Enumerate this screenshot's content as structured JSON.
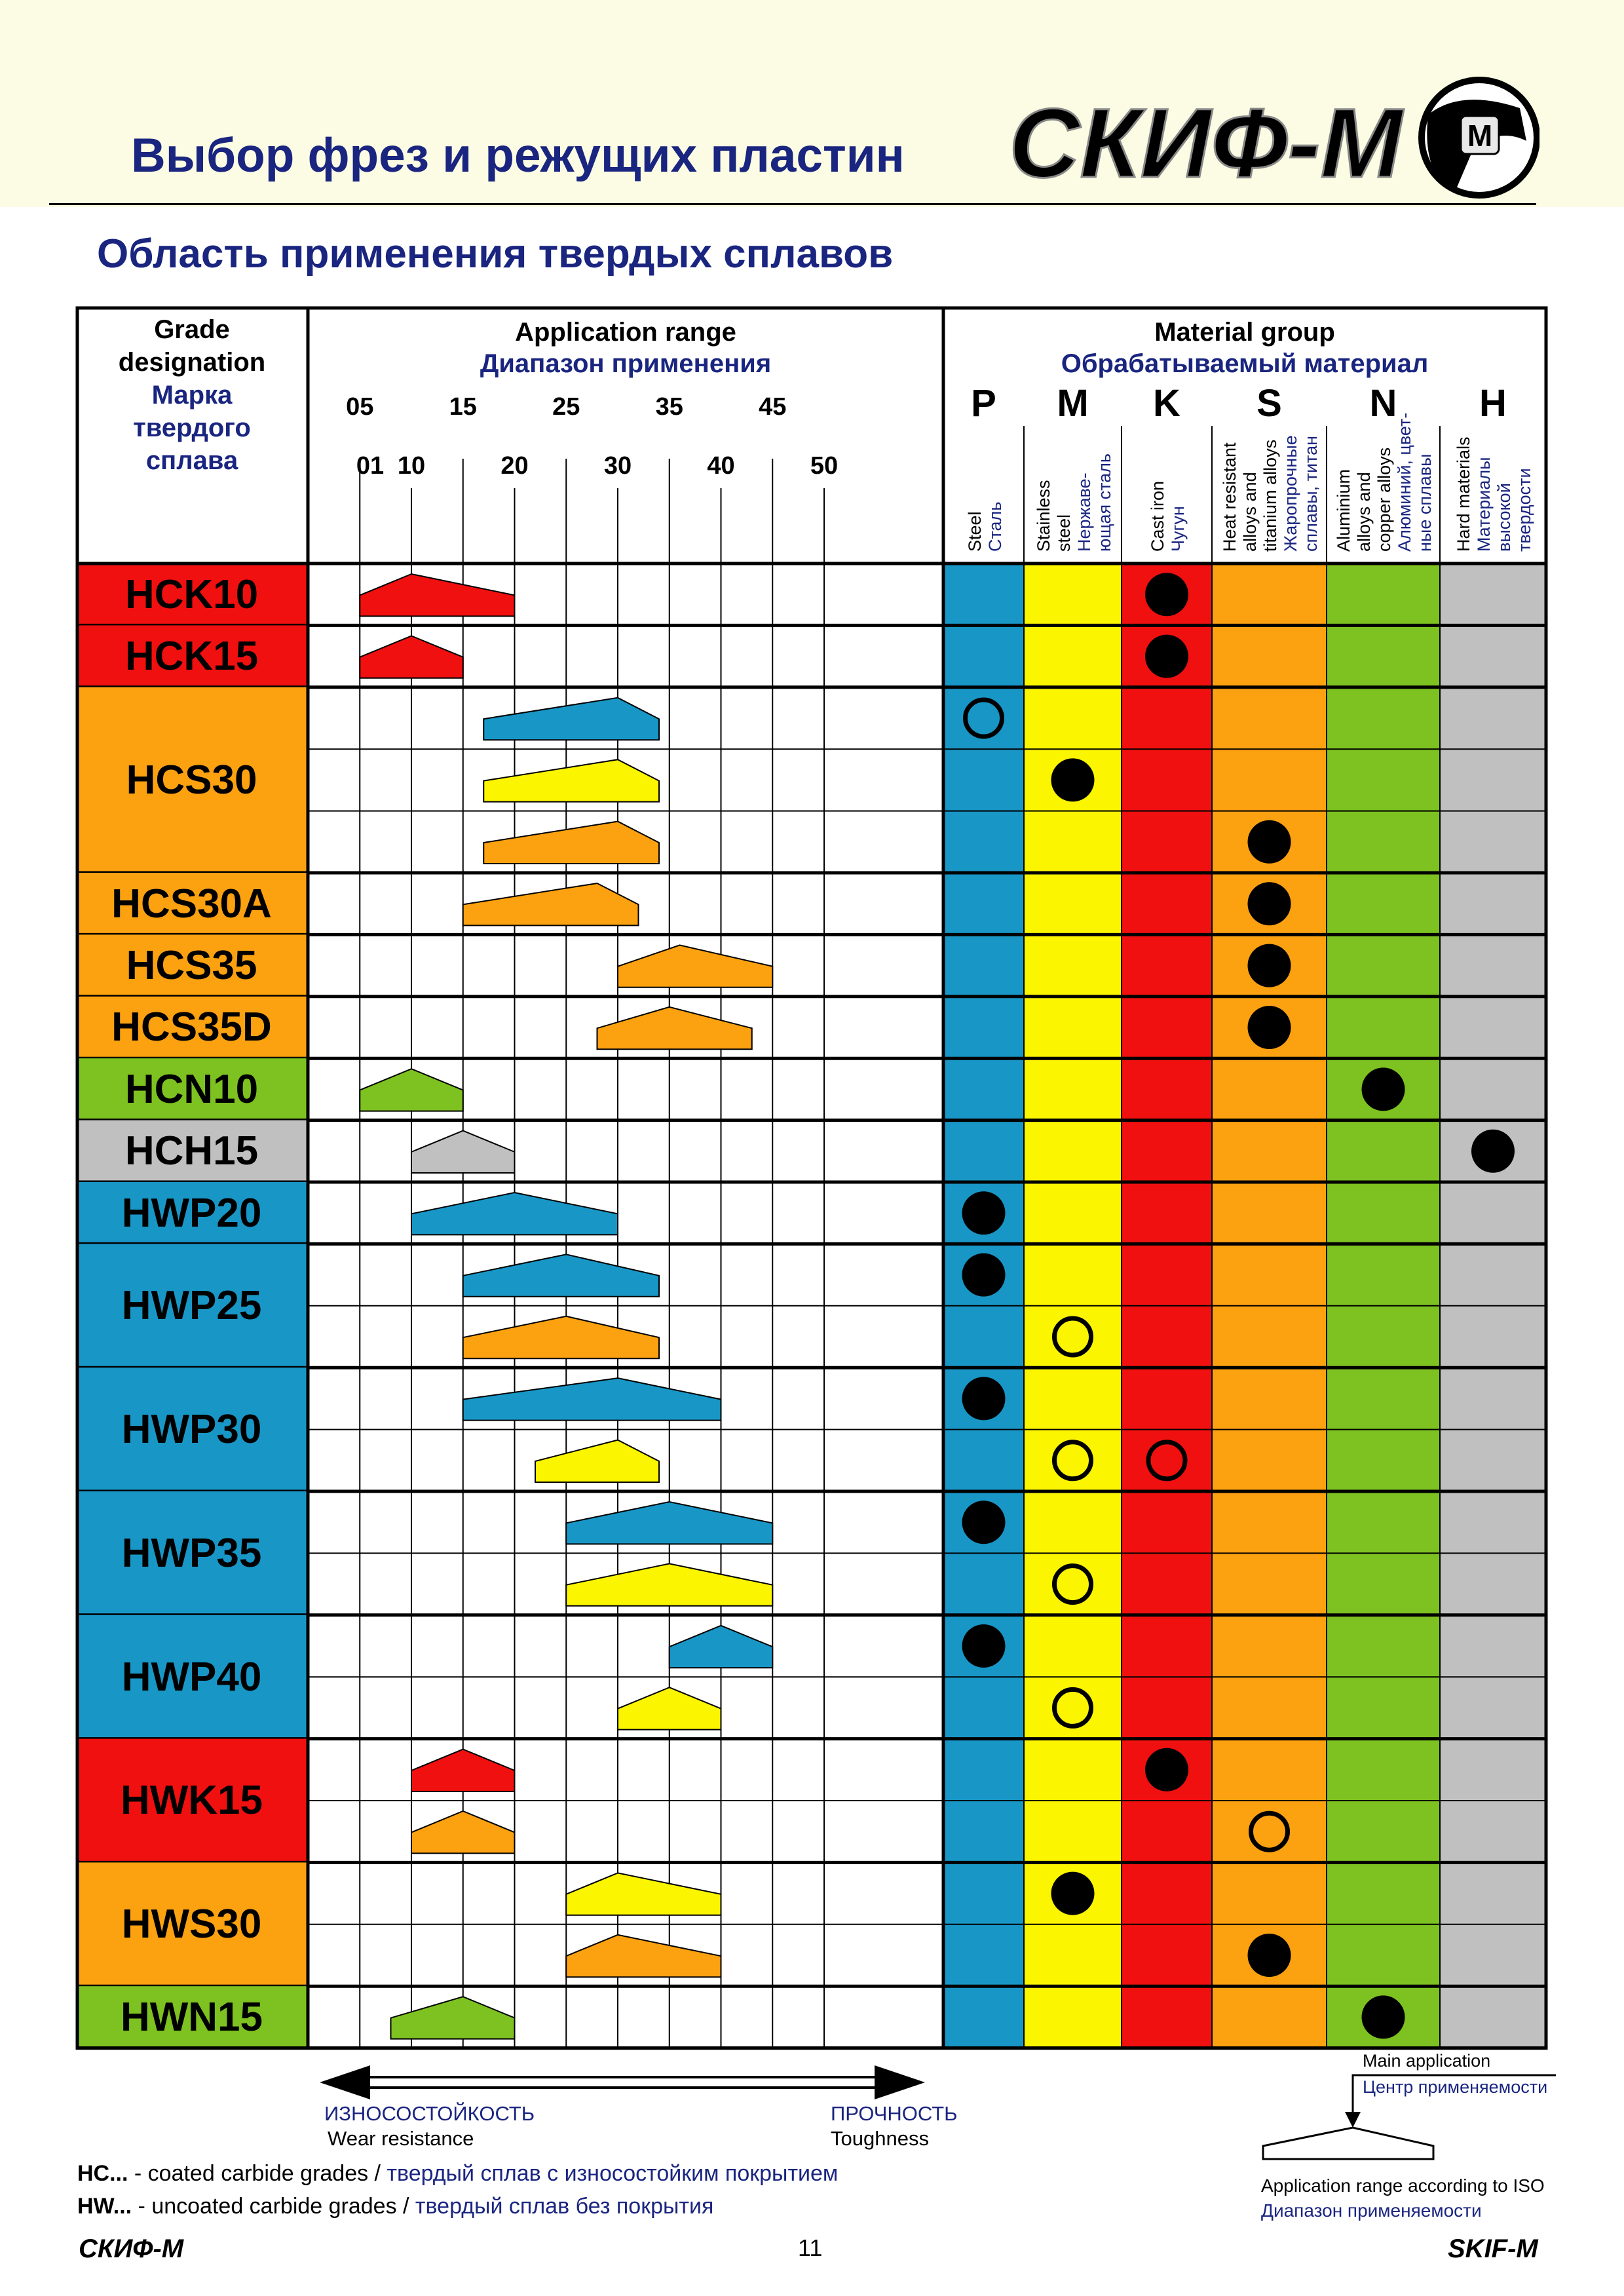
{
  "header": {
    "title": "Выбор фрез и  режущих пластин",
    "subtitle": "Область применения твердых сплавов",
    "logo_text": "СКИФ-М",
    "logo_badge": "М"
  },
  "table": {
    "grade_header": {
      "en1": "Grade",
      "en2": "designation",
      "ru1": "Марка",
      "ru2": "твердого",
      "ru3": "сплава"
    },
    "app_header": {
      "en": "Application range",
      "ru": "Диапазон применения"
    },
    "mat_header": {
      "en": "Material group",
      "ru": "Обрабатываемый материал"
    },
    "ticks_top": [
      "05",
      "15",
      "25",
      "35",
      "45"
    ],
    "ticks_bottom": [
      "01",
      "10",
      "20",
      "30",
      "40",
      "50"
    ],
    "materials": [
      {
        "letter": "P",
        "color": "#1897c7",
        "lines": [
          "Steel",
          "Сталь"
        ]
      },
      {
        "letter": "M",
        "color": "#fbf500",
        "lines": [
          "Stainless",
          "steel",
          "Нержаве-",
          "ющая сталь"
        ]
      },
      {
        "letter": "K",
        "color": "#f01010",
        "lines": [
          "Cast iron",
          "Чугун"
        ]
      },
      {
        "letter": "S",
        "color": "#fca110",
        "lines": [
          "Heat resistant",
          "alloys and",
          "titanium alloys",
          "Жаропрочные",
          "сплавы, титан"
        ]
      },
      {
        "letter": "N",
        "color": "#7dc220",
        "lines": [
          "Aluminium",
          "alloys and",
          "copper alloys",
          "Алюминий, цвет-",
          "ные сплавы"
        ]
      },
      {
        "letter": "H",
        "color": "#c0c0c0",
        "lines": [
          "Hard materials",
          "Материалы",
          "высокой",
          "твердости"
        ]
      }
    ],
    "grades": [
      {
        "name": "HCK10",
        "color": "#f01010",
        "rows": [
          {
            "iso": [
              5,
              10,
              20
            ],
            "color": "#f01010",
            "mark": {
              "mat": "K",
              "type": "filled"
            }
          }
        ]
      },
      {
        "name": "HCK15",
        "color": "#f01010",
        "rows": [
          {
            "iso": [
              5,
              10,
              15
            ],
            "color": "#f01010",
            "mark": {
              "mat": "K",
              "type": "filled"
            }
          }
        ]
      },
      {
        "name": "HCS30",
        "color": "#fca110",
        "rows": [
          {
            "iso": [
              17,
              30,
              34
            ],
            "color": "#1897c7",
            "mark": {
              "mat": "P",
              "type": "open"
            }
          },
          {
            "iso": [
              17,
              30,
              34
            ],
            "color": "#fbf500",
            "mark": {
              "mat": "M",
              "type": "filled"
            }
          },
          {
            "iso": [
              17,
              30,
              34
            ],
            "color": "#fca110",
            "mark": {
              "mat": "S",
              "type": "filled"
            }
          }
        ]
      },
      {
        "name": "HCS30A",
        "color": "#fca110",
        "rows": [
          {
            "iso": [
              15,
              28,
              32
            ],
            "color": "#fca110",
            "mark": {
              "mat": "S",
              "type": "filled"
            }
          }
        ]
      },
      {
        "name": "HCS35",
        "color": "#fca110",
        "rows": [
          {
            "iso": [
              30,
              36,
              45
            ],
            "color": "#fca110",
            "mark": {
              "mat": "S",
              "type": "filled"
            }
          }
        ]
      },
      {
        "name": "HCS35D",
        "color": "#fca110",
        "rows": [
          {
            "iso": [
              28,
              35,
              43
            ],
            "color": "#fca110",
            "mark": {
              "mat": "S",
              "type": "filled"
            }
          }
        ]
      },
      {
        "name": "HCN10",
        "color": "#7dc220",
        "rows": [
          {
            "iso": [
              5,
              10,
              15
            ],
            "color": "#7dc220",
            "mark": {
              "mat": "N",
              "type": "filled"
            }
          }
        ]
      },
      {
        "name": "HCH15",
        "color": "#c0c0c0",
        "rows": [
          {
            "iso": [
              10,
              15,
              20
            ],
            "color": "#c0c0c0",
            "mark": {
              "mat": "H",
              "type": "filled"
            }
          }
        ]
      },
      {
        "name": "HWP20",
        "color": "#1897c7",
        "rows": [
          {
            "iso": [
              10,
              20,
              30
            ],
            "color": "#1897c7",
            "mark": {
              "mat": "P",
              "type": "filled"
            }
          }
        ]
      },
      {
        "name": "HWP25",
        "color": "#1897c7",
        "rows": [
          {
            "iso": [
              15,
              25,
              34
            ],
            "color": "#1897c7",
            "mark": {
              "mat": "P",
              "type": "filled"
            }
          },
          {
            "iso": [
              15,
              25,
              34
            ],
            "color": "#fca110",
            "mark": {
              "mat": "M",
              "type": "open"
            }
          }
        ]
      },
      {
        "name": "HWP30",
        "color": "#1897c7",
        "rows": [
          {
            "iso": [
              15,
              30,
              40
            ],
            "color": "#1897c7",
            "mark": {
              "mat": "P",
              "type": "filled"
            }
          },
          {
            "iso": [
              22,
              30,
              34
            ],
            "color": "#fbf500",
            "marks": [
              {
                "mat": "M",
                "type": "open"
              },
              {
                "mat": "K",
                "type": "open"
              }
            ]
          }
        ]
      },
      {
        "name": "HWP35",
        "color": "#1897c7",
        "rows": [
          {
            "iso": [
              25,
              35,
              45
            ],
            "color": "#1897c7",
            "mark": {
              "mat": "P",
              "type": "filled"
            }
          },
          {
            "iso": [
              25,
              35,
              45
            ],
            "color": "#fbf500",
            "mark": {
              "mat": "M",
              "type": "open"
            }
          }
        ]
      },
      {
        "name": "HWP40",
        "color": "#1897c7",
        "rows": [
          {
            "iso": [
              35,
              40,
              45
            ],
            "color": "#1897c7",
            "mark": {
              "mat": "P",
              "type": "filled"
            }
          },
          {
            "iso": [
              30,
              35,
              40
            ],
            "color": "#fbf500",
            "mark": {
              "mat": "M",
              "type": "open"
            }
          }
        ]
      },
      {
        "name": "HWK15",
        "color": "#f01010",
        "rows": [
          {
            "iso": [
              10,
              15,
              20
            ],
            "color": "#f01010",
            "mark": {
              "mat": "K",
              "type": "filled"
            }
          },
          {
            "iso": [
              10,
              15,
              20
            ],
            "color": "#fca110",
            "mark": {
              "mat": "S",
              "type": "open"
            }
          }
        ]
      },
      {
        "name": "HWS30",
        "color": "#fca110",
        "rows": [
          {
            "iso": [
              25,
              30,
              40
            ],
            "color": "#fbf500",
            "mark": {
              "mat": "M",
              "type": "filled"
            }
          },
          {
            "iso": [
              25,
              30,
              40
            ],
            "color": "#fca110",
            "mark": {
              "mat": "S",
              "type": "filled"
            }
          }
        ]
      },
      {
        "name": "HWN15",
        "color": "#7dc220",
        "rows": [
          {
            "iso": [
              8,
              15,
              20
            ],
            "color": "#7dc220",
            "mark": {
              "mat": "N",
              "type": "filled"
            }
          }
        ]
      }
    ]
  },
  "legend": {
    "wear_ru": "ИЗНОСОСТОЙКОСТЬ",
    "wear_en": "Wear  resistance",
    "tough_ru": "ПРОЧНОСТЬ",
    "tough_en": "Toughness",
    "main_app_en": "Main application",
    "main_app_ru": "Центр применяемости",
    "range_en": "Application range according to ISO",
    "range_ru": "Диапазон применяемости",
    "hc_code": "HC...",
    "hc_en": " - coated carbide grades /",
    "hc_ru": " твердый сплав с износостойким покрытием",
    "hw_code": "HW...",
    "hw_en": " - uncoated carbide grades /",
    "hw_ru": " твердый сплав без покрытия"
  },
  "footer": {
    "left": "СКИФ-М",
    "page": "11",
    "right": "SKIF-M"
  }
}
